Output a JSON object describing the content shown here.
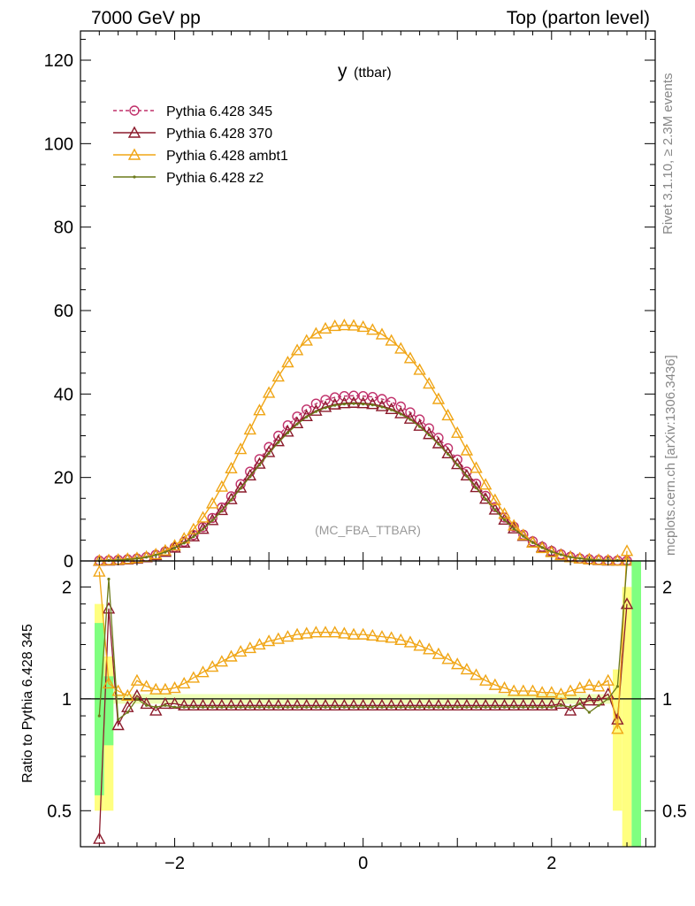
{
  "header": {
    "left": "7000 GeV pp",
    "right": "Top (parton level)"
  },
  "side_labels": {
    "rivet": "Rivet 3.1.10, ≥ 2.3M events",
    "mcplots": "mcplots.cern.ch [arXiv:1306.3436]"
  },
  "chart_data": [
    {
      "panel": "main",
      "type": "line",
      "title": "y",
      "title_sub": "(ttbar)",
      "watermark": "(MC_FBA_TTBAR)",
      "xlim": [
        -3.0,
        3.1
      ],
      "ylim": [
        0,
        127
      ],
      "yticks": [
        0,
        20,
        40,
        60,
        80,
        100,
        120
      ],
      "x": [
        -2.8,
        -2.7,
        -2.6,
        -2.5,
        -2.4,
        -2.3,
        -2.2,
        -2.1,
        -2.0,
        -1.9,
        -1.8,
        -1.7,
        -1.6,
        -1.5,
        -1.4,
        -1.3,
        -1.2,
        -1.1,
        -1.0,
        -0.9,
        -0.8,
        -0.7,
        -0.6,
        -0.5,
        -0.4,
        -0.3,
        -0.2,
        -0.1,
        0.0,
        0.1,
        0.2,
        0.3,
        0.4,
        0.5,
        0.6,
        0.7,
        0.8,
        0.9,
        1.0,
        1.1,
        1.2,
        1.3,
        1.4,
        1.5,
        1.6,
        1.7,
        1.8,
        1.9,
        2.0,
        2.1,
        2.2,
        2.3,
        2.4,
        2.5,
        2.6,
        2.7,
        2.8
      ],
      "legend_position": "top-left",
      "series": [
        {
          "name": "Pythia 6.428 345",
          "color": "#c0306a",
          "marker": "circle",
          "dashed": true,
          "values": [
            0.1,
            0.15,
            0.25,
            0.4,
            0.6,
            0.95,
            1.5,
            2.3,
            3.3,
            4.6,
            6.2,
            8.1,
            10.3,
            12.8,
            15.5,
            18.4,
            21.4,
            24.4,
            27.3,
            30.0,
            32.5,
            34.6,
            36.3,
            37.7,
            38.6,
            39.2,
            39.5,
            39.6,
            39.5,
            39.3,
            38.8,
            38.1,
            37.0,
            35.6,
            33.9,
            31.8,
            29.5,
            27.0,
            24.3,
            21.4,
            18.5,
            15.6,
            12.9,
            10.4,
            8.2,
            6.3,
            4.7,
            3.4,
            2.4,
            1.6,
            1.0,
            0.6,
            0.4,
            0.25,
            0.15,
            0.1,
            0.05
          ]
        },
        {
          "name": "Pythia 6.428 370",
          "color": "#8b1a2b",
          "marker": "triangle-open",
          "dashed": false,
          "values": [
            0.05,
            0.1,
            0.2,
            0.35,
            0.55,
            0.9,
            1.4,
            2.2,
            3.2,
            4.4,
            5.9,
            7.7,
            9.8,
            12.2,
            14.8,
            17.6,
            20.5,
            23.3,
            26.1,
            28.7,
            31.0,
            33.0,
            34.7,
            36.0,
            36.9,
            37.5,
            37.8,
            37.9,
            37.8,
            37.6,
            37.1,
            36.4,
            35.4,
            34.1,
            32.4,
            30.4,
            28.2,
            25.8,
            23.2,
            20.5,
            17.7,
            14.9,
            12.3,
            9.9,
            7.8,
            6.0,
            4.5,
            3.3,
            2.3,
            1.5,
            1.0,
            0.6,
            0.35,
            0.2,
            0.1,
            0.1,
            0.05
          ]
        },
        {
          "name": "Pythia 6.428 ambt1",
          "color": "#f0a515",
          "marker": "triangle-open",
          "dashed": false,
          "values": [
            0.1,
            0.2,
            0.3,
            0.5,
            0.7,
            1.0,
            1.6,
            2.5,
            3.7,
            5.4,
            7.6,
            10.4,
            13.8,
            17.8,
            22.2,
            26.8,
            31.5,
            36.1,
            40.3,
            44.2,
            47.6,
            50.5,
            52.8,
            54.5,
            55.7,
            56.3,
            56.5,
            56.4,
            56.1,
            55.4,
            54.3,
            52.8,
            50.9,
            48.6,
            45.8,
            42.5,
            38.8,
            34.9,
            30.7,
            26.5,
            22.3,
            18.3,
            14.6,
            11.3,
            8.5,
            6.2,
            4.4,
            3.1,
            2.1,
            1.4,
            0.9,
            0.6,
            0.4,
            0.25,
            0.15,
            0.1,
            0.05
          ]
        },
        {
          "name": "Pythia 6.428 z2",
          "color": "#6b7a1a",
          "marker": "dot",
          "dashed": false,
          "values": [
            0.05,
            0.1,
            0.2,
            0.35,
            0.55,
            0.9,
            1.4,
            2.1,
            3.1,
            4.3,
            5.8,
            7.6,
            9.7,
            12.0,
            14.6,
            17.4,
            20.2,
            23.0,
            25.8,
            28.4,
            30.7,
            32.8,
            34.5,
            35.8,
            36.7,
            37.3,
            37.6,
            37.7,
            37.6,
            37.4,
            36.9,
            36.2,
            35.2,
            33.9,
            32.2,
            30.2,
            28.0,
            25.6,
            23.0,
            20.3,
            17.5,
            14.8,
            12.2,
            9.8,
            7.7,
            5.9,
            4.4,
            3.2,
            2.2,
            1.5,
            0.9,
            0.6,
            0.35,
            0.2,
            0.1,
            0.1,
            0.05
          ]
        }
      ]
    },
    {
      "panel": "ratio",
      "type": "line",
      "ylabel": "Ratio to Pythia 6.428 345",
      "xlim": [
        -3.0,
        3.1
      ],
      "ylim": [
        0.4,
        2.35
      ],
      "log_y": true,
      "xticks": [
        -2,
        0,
        2
      ],
      "yticks": [
        0.5,
        1,
        2
      ],
      "x": [
        -2.8,
        -2.7,
        -2.6,
        -2.5,
        -2.4,
        -2.3,
        -2.2,
        -2.1,
        -2.0,
        -1.9,
        -1.8,
        -1.7,
        -1.6,
        -1.5,
        -1.4,
        -1.3,
        -1.2,
        -1.1,
        -1.0,
        -0.9,
        -0.8,
        -0.7,
        -0.6,
        -0.5,
        -0.4,
        -0.3,
        -0.2,
        -0.1,
        0.0,
        0.1,
        0.2,
        0.3,
        0.4,
        0.5,
        0.6,
        0.7,
        0.8,
        0.9,
        1.0,
        1.1,
        1.2,
        1.3,
        1.4,
        1.5,
        1.6,
        1.7,
        1.8,
        1.9,
        2.0,
        2.1,
        2.2,
        2.3,
        2.4,
        2.5,
        2.6,
        2.7,
        2.8
      ],
      "series": [
        {
          "name": "Pythia 6.428 345",
          "color": "#c0306a",
          "values": [
            1,
            1,
            1,
            1,
            1,
            1,
            1,
            1,
            1,
            1,
            1,
            1,
            1,
            1,
            1,
            1,
            1,
            1,
            1,
            1,
            1,
            1,
            1,
            1,
            1,
            1,
            1,
            1,
            1,
            1,
            1,
            1,
            1,
            1,
            1,
            1,
            1,
            1,
            1,
            1,
            1,
            1,
            1,
            1,
            1,
            1,
            1,
            1,
            1,
            1,
            1,
            1,
            1,
            1,
            1,
            1,
            1
          ]
        },
        {
          "name": "Pythia 6.428 370",
          "color": "#8b1a2b",
          "values": [
            0.42,
            1.75,
            0.85,
            0.95,
            1.02,
            0.97,
            0.93,
            0.97,
            0.97,
            0.96,
            0.96,
            0.96,
            0.96,
            0.96,
            0.96,
            0.96,
            0.96,
            0.96,
            0.96,
            0.96,
            0.96,
            0.96,
            0.96,
            0.96,
            0.96,
            0.96,
            0.96,
            0.96,
            0.96,
            0.96,
            0.96,
            0.96,
            0.96,
            0.96,
            0.96,
            0.96,
            0.96,
            0.96,
            0.96,
            0.96,
            0.96,
            0.96,
            0.96,
            0.96,
            0.96,
            0.96,
            0.96,
            0.96,
            0.96,
            0.97,
            0.93,
            0.97,
            0.99,
            0.99,
            1.03,
            0.88,
            1.8
          ]
        },
        {
          "name": "Pythia 6.428 ambt1",
          "color": "#f0a515",
          "values": [
            2.2,
            1.1,
            1.05,
            1.02,
            1.12,
            1.08,
            1.06,
            1.06,
            1.07,
            1.1,
            1.14,
            1.18,
            1.22,
            1.26,
            1.3,
            1.34,
            1.37,
            1.4,
            1.43,
            1.45,
            1.47,
            1.49,
            1.5,
            1.51,
            1.51,
            1.51,
            1.5,
            1.49,
            1.49,
            1.48,
            1.47,
            1.46,
            1.44,
            1.42,
            1.39,
            1.36,
            1.32,
            1.28,
            1.24,
            1.2,
            1.16,
            1.12,
            1.09,
            1.07,
            1.05,
            1.05,
            1.05,
            1.04,
            1.04,
            1.03,
            1.05,
            1.07,
            1.09,
            1.08,
            1.12,
            0.83,
            2.5
          ]
        },
        {
          "name": "Pythia 6.428 z2",
          "color": "#6b7a1a",
          "values": [
            0.9,
            2.1,
            0.88,
            0.92,
            1.0,
            0.96,
            0.95,
            0.96,
            0.95,
            0.95,
            0.95,
            0.95,
            0.95,
            0.95,
            0.95,
            0.95,
            0.95,
            0.95,
            0.95,
            0.95,
            0.95,
            0.95,
            0.95,
            0.95,
            0.95,
            0.95,
            0.95,
            0.95,
            0.95,
            0.95,
            0.95,
            0.95,
            0.95,
            0.95,
            0.95,
            0.95,
            0.95,
            0.95,
            0.95,
            0.95,
            0.95,
            0.95,
            0.95,
            0.95,
            0.95,
            0.95,
            0.95,
            0.95,
            0.95,
            0.96,
            0.95,
            0.97,
            0.92,
            0.96,
            1.0,
            1.08,
            2.3
          ]
        }
      ]
    }
  ]
}
